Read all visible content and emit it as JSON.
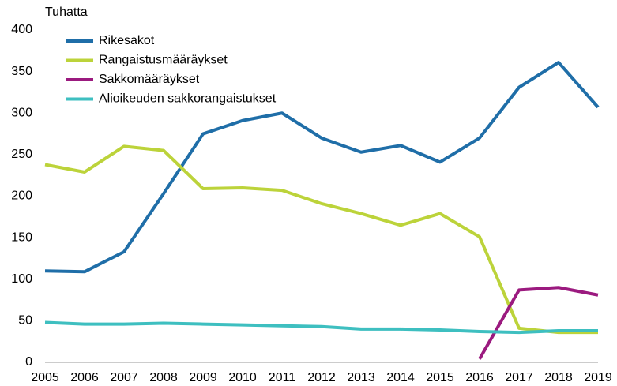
{
  "chart_data": {
    "type": "line",
    "y_unit_label": "Tuhatta",
    "x": [
      2005,
      2006,
      2007,
      2008,
      2009,
      2010,
      2011,
      2012,
      2013,
      2014,
      2015,
      2016,
      2017,
      2018,
      2019
    ],
    "series": [
      {
        "name": "Rikesakot",
        "color": "#1f6ea8",
        "values": [
          110,
          109,
          133,
          203,
          275,
          291,
          300,
          270,
          253,
          261,
          241,
          270,
          331,
          361,
          307
        ]
      },
      {
        "name": "Rangaistusmääräykset",
        "color": "#bcd33a",
        "values": [
          238,
          229,
          260,
          255,
          209,
          210,
          207,
          191,
          179,
          165,
          179,
          151,
          41,
          36,
          36
        ]
      },
      {
        "name": "Sakkomääräykset",
        "color": "#9b1a7f",
        "values": [
          null,
          null,
          null,
          null,
          null,
          null,
          null,
          null,
          null,
          null,
          null,
          4,
          87,
          90,
          81
        ]
      },
      {
        "name": "Alioikeuden sakkorangaistukset",
        "color": "#3ebfc0",
        "values": [
          48,
          46,
          46,
          47,
          46,
          45,
          44,
          43,
          40,
          40,
          39,
          37,
          36,
          38,
          38
        ]
      }
    ],
    "xlim": [
      2005,
      2019
    ],
    "ylim": [
      0,
      400
    ],
    "yticks": [
      0,
      50,
      100,
      150,
      200,
      250,
      300,
      350,
      400
    ],
    "grid": false,
    "legend": "top-left"
  }
}
